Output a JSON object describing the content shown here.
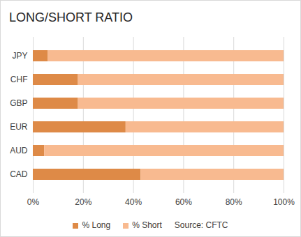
{
  "chart_data": {
    "type": "bar",
    "title": "LONG/SHORT RATIO",
    "orientation": "horizontal",
    "stacked": true,
    "categories": [
      "JPY",
      "CHF",
      "GBP",
      "EUR",
      "AUD",
      "CAD"
    ],
    "series": [
      {
        "name": "% Long",
        "color": "#de8a47",
        "values": [
          6,
          18,
          18,
          37,
          4.5,
          43
        ]
      },
      {
        "name": "% Short",
        "color": "#f8ba90",
        "values": [
          94,
          82,
          82,
          63,
          95.5,
          57
        ]
      }
    ],
    "xlim": [
      0,
      100
    ],
    "xticks": [
      {
        "value": 0,
        "label": "0%"
      },
      {
        "value": 20,
        "label": "20%"
      },
      {
        "value": 40,
        "label": "40%"
      },
      {
        "value": 60,
        "label": "60%"
      },
      {
        "value": 80,
        "label": "80%"
      },
      {
        "value": 100,
        "label": "100%"
      }
    ],
    "grid": true,
    "legend": "bottom",
    "caption": "Source: CFTC"
  }
}
